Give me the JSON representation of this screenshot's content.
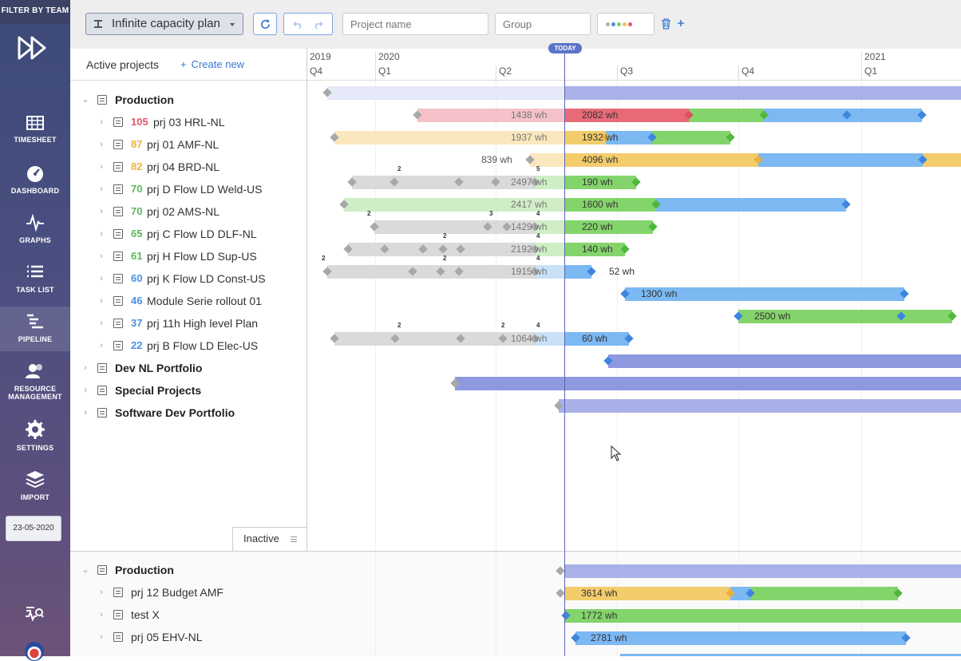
{
  "sidebar": {
    "filter_label": "FILTER BY TEAM",
    "items": [
      {
        "label": "TIMESHEET",
        "icon": "timesheet-icon"
      },
      {
        "label": "DASHBOARD",
        "icon": "dashboard-icon"
      },
      {
        "label": "GRAPHS",
        "icon": "graphs-icon"
      },
      {
        "label": "TASK LIST",
        "icon": "task-list-icon"
      },
      {
        "label": "PIPELINE",
        "icon": "pipeline-icon",
        "active": true
      },
      {
        "label": "RESOURCE MANAGEMENT",
        "icon": "resource-management-icon"
      },
      {
        "label": "SETTINGS",
        "icon": "settings-icon"
      },
      {
        "label": "IMPORT",
        "icon": "import-icon"
      }
    ],
    "date": "23-05-2020"
  },
  "toolbar": {
    "plan_name": "Infinite capacity plan",
    "project_placeholder": "Project name",
    "group_placeholder": "Group",
    "color_dots": [
      "#b0b0b0",
      "#4a8fe0",
      "#7fcf6a",
      "#f0c060",
      "#e05a6a"
    ]
  },
  "left": {
    "title": "Active projects",
    "create_new": "Create new",
    "inactive_tab": "Inactive"
  },
  "timeline": {
    "today": "TODAY",
    "years": [
      "2019",
      "2020",
      "2021"
    ],
    "quarters": [
      "Q4",
      "Q1",
      "Q2",
      "Q3",
      "Q4",
      "Q1"
    ]
  },
  "active_rows": [
    {
      "type": "group",
      "name": "Production"
    },
    {
      "type": "project",
      "num": "105",
      "num_color": "#e05a6a",
      "name": "prj 03 HRL-NL"
    },
    {
      "type": "project",
      "num": "87",
      "num_color": "#f0b040",
      "name": "prj 01 AMF-NL"
    },
    {
      "type": "project",
      "num": "82",
      "num_color": "#f0b040",
      "name": "prj 04 BRD-NL"
    },
    {
      "type": "project",
      "num": "70",
      "num_color": "#5cb85c",
      "name": "prj D Flow LD Weld-US"
    },
    {
      "type": "project",
      "num": "70",
      "num_color": "#5cb85c",
      "name": "prj 02 AMS-NL"
    },
    {
      "type": "project",
      "num": "65",
      "num_color": "#5cb85c",
      "name": "prj C Flow LD DLF-NL"
    },
    {
      "type": "project",
      "num": "61",
      "num_color": "#5cb85c",
      "name": "prj H Flow LD Sup-US"
    },
    {
      "type": "project",
      "num": "60",
      "num_color": "#4a8fe0",
      "name": "prj K Flow LD Const-US"
    },
    {
      "type": "project",
      "num": "46",
      "num_color": "#4a8fe0",
      "name": "Module Serie rollout 01"
    },
    {
      "type": "project",
      "num": "37",
      "num_color": "#4a8fe0",
      "name": "prj 11h High level Plan"
    },
    {
      "type": "project",
      "num": "22",
      "num_color": "#4a8fe0",
      "name": "prj B Flow LD Elec-US"
    },
    {
      "type": "group",
      "name": "Dev NL Portfolio"
    },
    {
      "type": "group",
      "name": "Special Projects"
    },
    {
      "type": "group",
      "name": "Software Dev Portfolio"
    }
  ],
  "inactive_rows": [
    {
      "type": "group",
      "name": "Production"
    },
    {
      "type": "project",
      "num": "",
      "name": "prj 12 Budget AMF"
    },
    {
      "type": "project",
      "num": "",
      "name": "test X"
    },
    {
      "type": "project",
      "num": "",
      "name": "prj 05 EHV-NL"
    }
  ],
  "active_labels": [
    [],
    [
      "1438 wh",
      "2082 wh"
    ],
    [
      "1937 wh",
      "1932 wh"
    ],
    [
      "839 wh",
      "4096 wh"
    ],
    [
      "2497 wh",
      "190 wh"
    ],
    [
      "2417 wh",
      "1600 wh"
    ],
    [
      "1429 wh",
      "220 wh"
    ],
    [
      "2192 wh",
      "140 wh"
    ],
    [
      "1915 wh",
      "52 wh"
    ],
    [
      "1300 wh"
    ],
    [
      "2500 wh"
    ],
    [
      "1064 wh",
      "60 wh"
    ],
    [],
    [],
    []
  ],
  "inactive_labels": [
    [],
    [
      "3614 wh"
    ],
    [
      "1772 wh"
    ],
    [
      "2781 wh"
    ]
  ],
  "milestone_counts": [
    {
      "row": 4,
      "labels": [
        "2",
        "5"
      ]
    },
    {
      "row": 6,
      "labels": [
        "2",
        "3",
        "4"
      ]
    },
    {
      "row": 7,
      "labels": [
        "2",
        "4"
      ]
    },
    {
      "row": 8,
      "labels": [
        "2",
        "2",
        "4"
      ]
    },
    {
      "row": 11,
      "labels": [
        "2",
        "2",
        "4"
      ]
    }
  ],
  "colors": {
    "red": "#e86a78",
    "orange": "#f3cc6b",
    "green": "#84d46c",
    "blue": "#7cb8f2",
    "grey": "#dadada",
    "group": "#a9b1e8"
  }
}
